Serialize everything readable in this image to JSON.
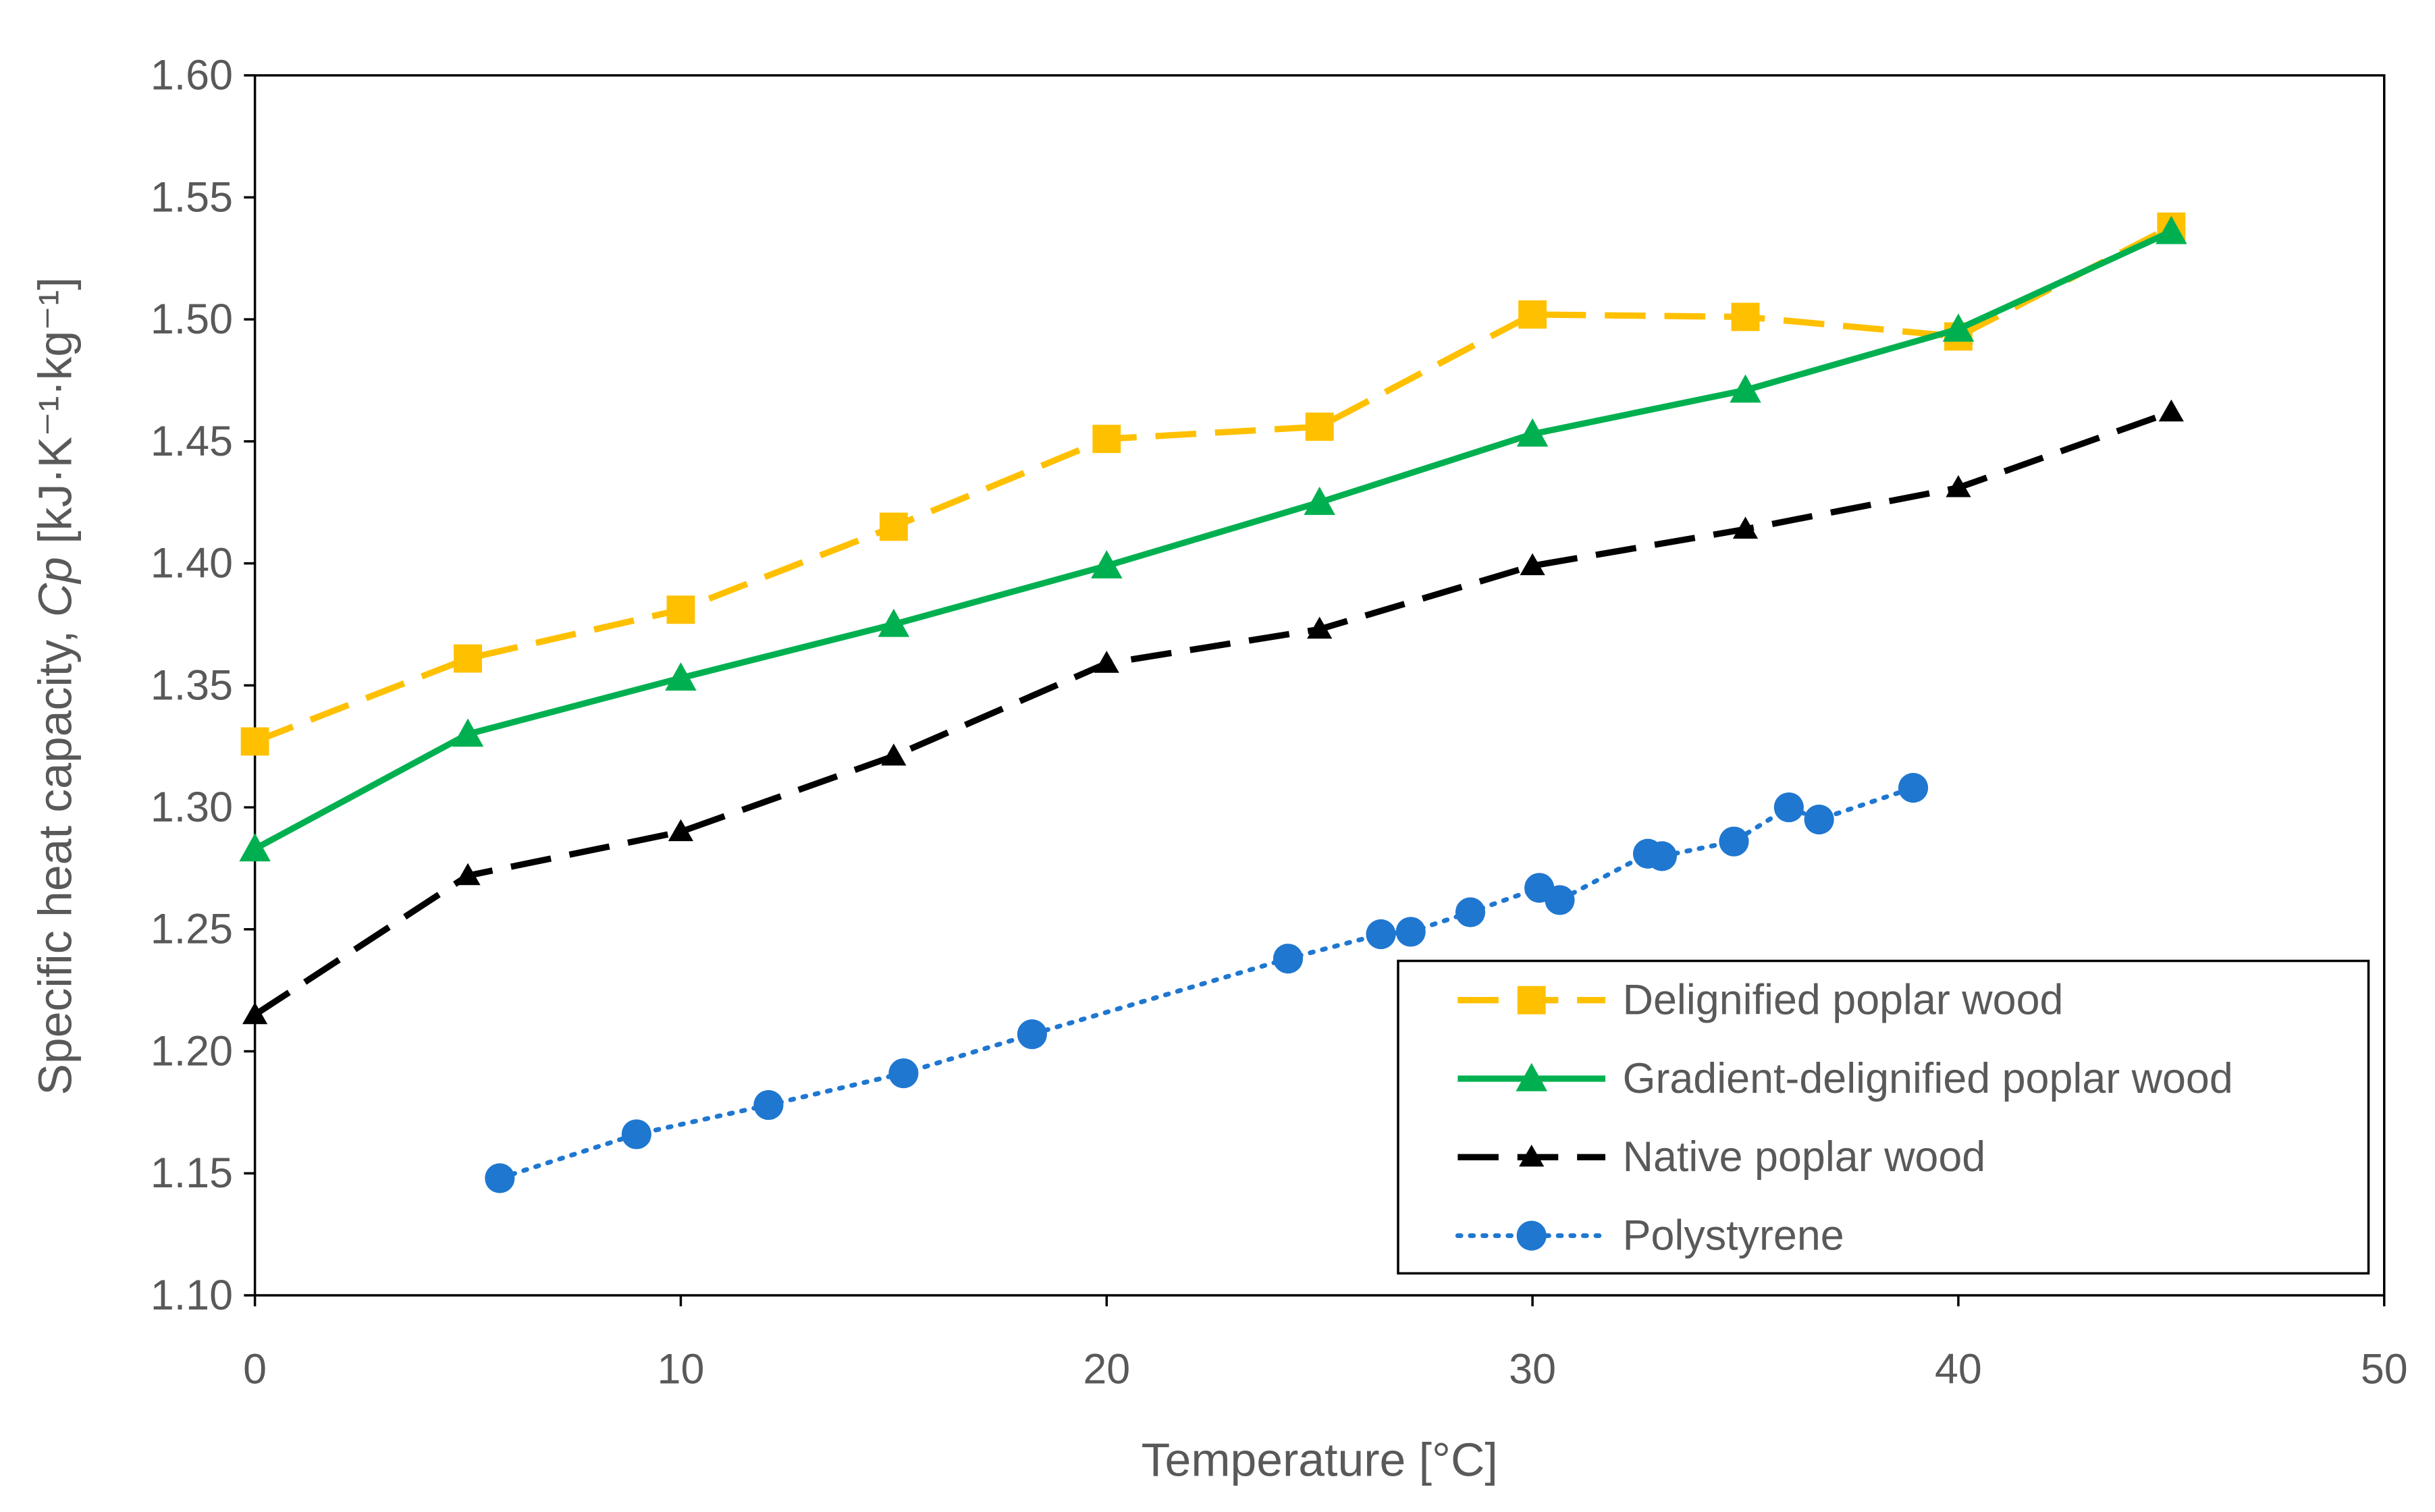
{
  "chart_data": {
    "type": "line",
    "title": "",
    "xlabel": "Temperature [°C]",
    "ylabel": "Specific heat capacity, Cp [kJ·K⁻¹·kg⁻¹]",
    "ylabel_parts": {
      "prefix": "Specific heat capacity, ",
      "italic": "Cp",
      "suffix": " [kJ·K⁻¹·kg⁻¹]"
    },
    "xlim": [
      0,
      50
    ],
    "ylim": [
      1.1,
      1.6
    ],
    "xticks": [
      "0",
      "10",
      "20",
      "30",
      "40",
      "50"
    ],
    "yticks": [
      "1.10",
      "1.15",
      "1.20",
      "1.25",
      "1.30",
      "1.35",
      "1.40",
      "1.45",
      "1.50",
      "1.55",
      "1.60"
    ],
    "grid": false,
    "legend_position": "bottom-right",
    "series": [
      {
        "name": "Delignified poplar wood",
        "color": "#FFC000",
        "marker": "square",
        "dash": "dashed",
        "x": [
          0,
          5,
          10,
          15,
          20,
          25,
          30,
          35,
          40,
          45
        ],
        "y": [
          1.327,
          1.361,
          1.381,
          1.415,
          1.451,
          1.456,
          1.502,
          1.501,
          1.493,
          1.538
        ]
      },
      {
        "name": "Gradient-delignified poplar wood",
        "color": "#00B050",
        "marker": "triangle",
        "dash": "solid",
        "x": [
          0,
          5,
          10,
          15,
          20,
          25,
          30,
          35,
          40,
          45
        ],
        "y": [
          1.283,
          1.33,
          1.353,
          1.375,
          1.399,
          1.425,
          1.453,
          1.471,
          1.496,
          1.536
        ]
      },
      {
        "name": "Native poplar wood",
        "color": "#000000",
        "marker": "triangle-small",
        "dash": "dashed",
        "x": [
          0,
          5,
          10,
          15,
          20,
          25,
          30,
          35,
          40,
          45
        ],
        "y": [
          1.215,
          1.272,
          1.29,
          1.321,
          1.359,
          1.373,
          1.399,
          1.414,
          1.431,
          1.462
        ]
      },
      {
        "name": "Polystyrene",
        "color": "#1F77D0",
        "marker": "circle",
        "dash": "dotted",
        "x": [
          5.75,
          8.96,
          12.06,
          15.23,
          18.25,
          24.26,
          26.44,
          27.14,
          28.54,
          30.16,
          30.64,
          32.71,
          33.04,
          34.73,
          36.02,
          36.73,
          38.94
        ],
        "y": [
          1.148,
          1.166,
          1.178,
          1.191,
          1.207,
          1.238,
          1.248,
          1.249,
          1.257,
          1.267,
          1.262,
          1.281,
          1.28,
          1.286,
          1.3,
          1.295,
          1.308
        ]
      }
    ]
  }
}
